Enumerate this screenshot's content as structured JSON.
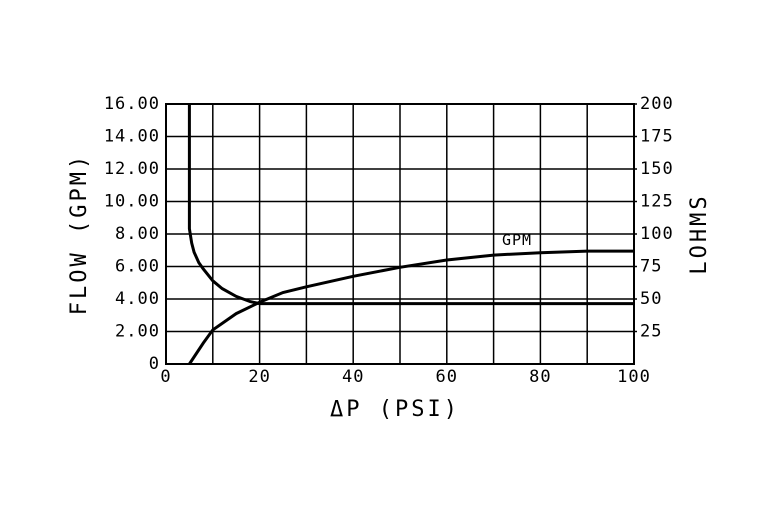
{
  "chart_data": {
    "type": "line",
    "xlabel": "ΔP (PSI)",
    "ylabel": "FLOW   (GPM)",
    "y2label": "LOHMS",
    "xlim": [
      0,
      100
    ],
    "xticks": [
      0,
      20,
      40,
      60,
      80,
      100
    ],
    "xminor": [
      10,
      30,
      50,
      70,
      90
    ],
    "ylim": [
      0,
      16
    ],
    "yticks": [
      0,
      {
        "value": 2,
        "label": "2.00"
      },
      {
        "value": 4,
        "label": "4.00"
      },
      {
        "value": 6,
        "label": "6.00"
      },
      {
        "value": 8,
        "label": "8.00"
      },
      {
        "value": 10,
        "label": "10.00"
      },
      {
        "value": 12,
        "label": "12.00"
      },
      {
        "value": 14,
        "label": "14.00"
      },
      {
        "value": 16,
        "label": "16.00"
      }
    ],
    "y2lim": [
      0,
      200
    ],
    "y2ticks": [
      25,
      50,
      75,
      100,
      125,
      150,
      175,
      200
    ],
    "grid": true,
    "series": [
      {
        "name": "GPM",
        "color": "#000000",
        "x": [
          5,
          8,
          10,
          15,
          20,
          25,
          30,
          40,
          50,
          60,
          70,
          80,
          90,
          100
        ],
        "values": [
          0,
          1.3,
          2.1,
          3.1,
          3.8,
          4.4,
          4.75,
          5.4,
          5.95,
          6.4,
          6.7,
          6.85,
          6.95,
          6.95
        ],
        "label_at": [
          75,
          7.6
        ]
      },
      {
        "name": "LOHMS",
        "color": "#000000",
        "axis": "y2",
        "x": [
          5,
          5,
          5.5,
          6,
          7,
          8,
          10,
          12,
          15,
          18,
          20,
          100
        ],
        "values": [
          200,
          104,
          93,
          86,
          78,
          73,
          64,
          58,
          52,
          48,
          46.5,
          46.5
        ],
        "label_at": [
          79,
          35
        ]
      }
    ]
  }
}
